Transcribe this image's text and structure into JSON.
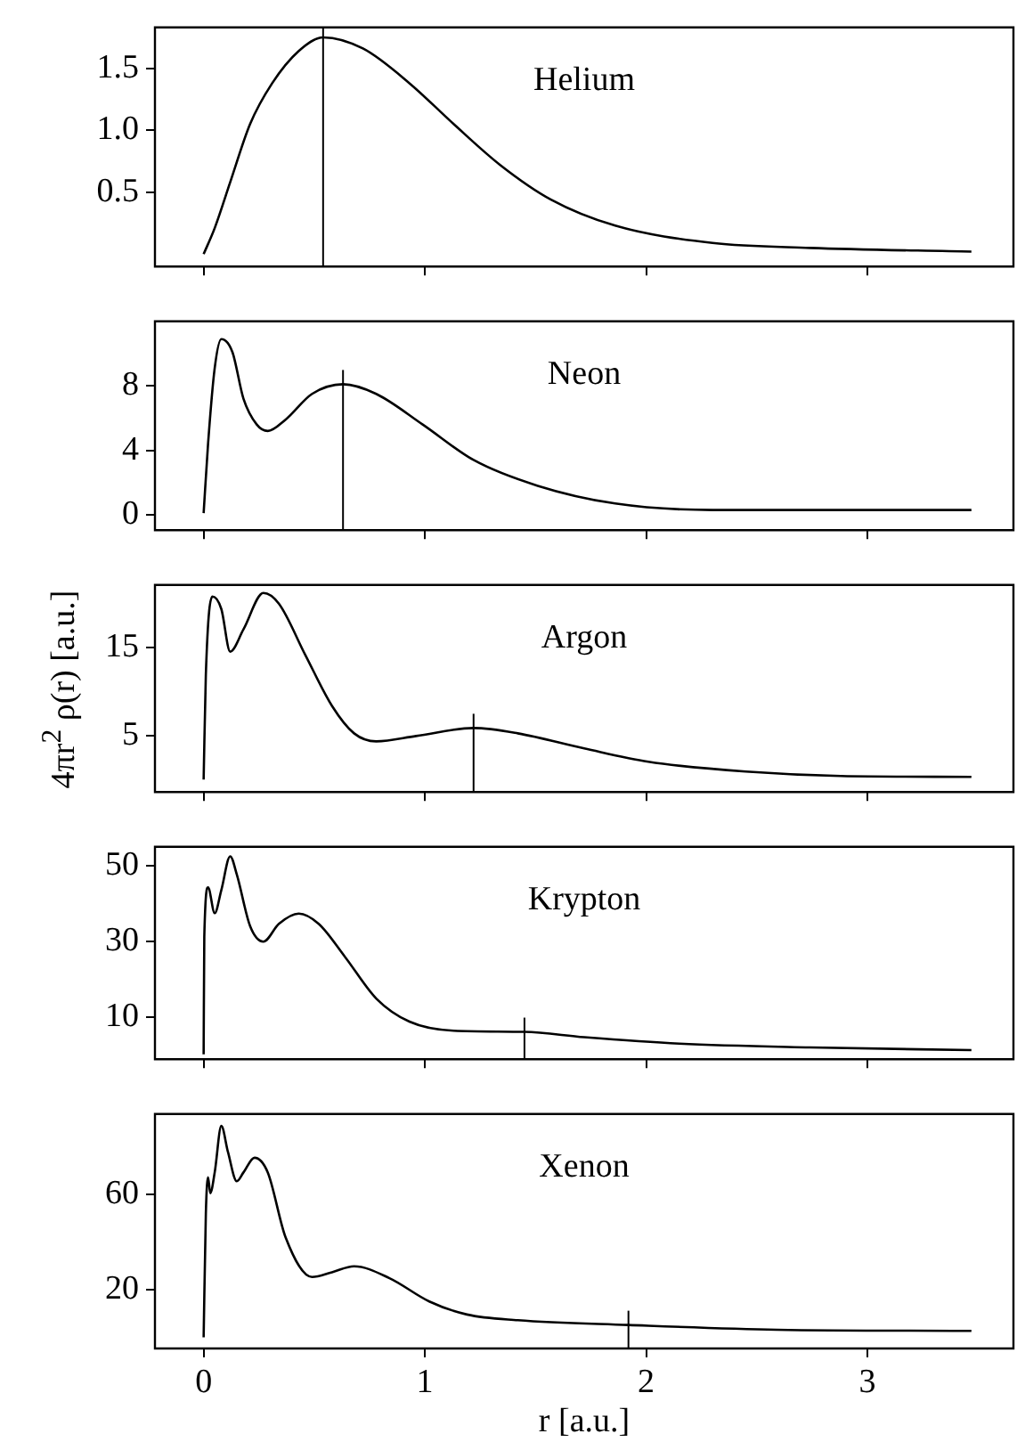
{
  "chart_data": [
    {
      "type": "line",
      "x": [
        0,
        0.05,
        0.12,
        0.21,
        0.31,
        0.43,
        0.54,
        0.72,
        0.93,
        1.13,
        1.34,
        1.57,
        1.86,
        2.3,
        2.74,
        3.47
      ],
      "series": [
        {
          "name": "Helium",
          "color": "#000000",
          "values": [
            0,
            0.21,
            0.58,
            1.05,
            1.38,
            1.64,
            1.75,
            1.66,
            1.38,
            1.05,
            0.72,
            0.44,
            0.23,
            0.09,
            0.05,
            0.02
          ]
        }
      ],
      "xlim": [
        -0.22,
        3.66
      ],
      "xticks": [
        0,
        1,
        2,
        3
      ],
      "ylim": [
        -0.1,
        1.83
      ],
      "yticks": [
        0.5,
        {
          "value": 1,
          "label": "1.0"
        },
        1.5
      ],
      "tick_labels": "y",
      "ref_lines": [
        {
          "axis": "x",
          "value": 0.54
        }
      ]
    },
    {
      "type": "line",
      "x": [
        0,
        0.02,
        0.05,
        0.08,
        0.13,
        0.18,
        0.24,
        0.29,
        0.37,
        0.49,
        0.63,
        0.78,
        0.99,
        1.22,
        1.51,
        1.86,
        2.3,
        2.88,
        3.47
      ],
      "series": [
        {
          "name": "Neon",
          "color": "#000000",
          "values": [
            0.1,
            4.4,
            9.1,
            10.9,
            10.1,
            7.2,
            5.6,
            5.2,
            5.9,
            7.5,
            8.1,
            7.5,
            5.6,
            3.4,
            1.8,
            0.7,
            0.3,
            0.3,
            0.3
          ]
        }
      ],
      "xlim": [
        -0.22,
        3.66
      ],
      "xticks": [
        0,
        1,
        2,
        3
      ],
      "ylim": [
        -0.95,
        12
      ],
      "yticks": [
        0,
        4,
        8
      ],
      "tick_labels": "y",
      "ref_lines": [
        {
          "axis": "x",
          "value": 0.63
        }
      ]
    },
    {
      "type": "line",
      "x": [
        0,
        0.01,
        0.04,
        0.08,
        0.12,
        0.18,
        0.27,
        0.34,
        0.46,
        0.58,
        0.68,
        0.78,
        0.96,
        1.22,
        1.42,
        1.72,
        2.01,
        2.45,
        2.88,
        3.47
      ],
      "series": [
        {
          "name": "Argon",
          "color": "#000000",
          "values": [
            0.1,
            11.9,
            20.7,
            19.3,
            14.5,
            17,
            21.1,
            19.9,
            14.1,
            8.4,
            5.3,
            4.4,
            5,
            5.9,
            5.3,
            3.6,
            2.1,
            1,
            0.5,
            0.4
          ]
        }
      ],
      "xlim": [
        -0.22,
        3.66
      ],
      "xticks": [
        0,
        1,
        2,
        3
      ],
      "ylim": [
        -1.3,
        22
      ],
      "yticks": [
        5,
        15
      ],
      "ylabel": "4πr$^{2}$ ρ(r) [a.u.]",
      "tick_labels": "y",
      "ref_lines": [
        {
          "axis": "x",
          "value": 1.22
        }
      ]
    },
    {
      "type": "line",
      "x": [
        0,
        0.003,
        0.02,
        0.05,
        0.08,
        0.12,
        0.15,
        0.21,
        0.27,
        0.34,
        0.43,
        0.52,
        0.64,
        0.78,
        0.93,
        1.13,
        1.45,
        1.72,
        2.15,
        2.74,
        3.47
      ],
      "series": [
        {
          "name": "Krypton",
          "color": "#000000",
          "values": [
            0.3,
            31.3,
            44.3,
            37.5,
            43.6,
            52.5,
            47.7,
            34.1,
            30,
            34.7,
            37.4,
            34.7,
            25.9,
            15,
            8.9,
            6.5,
            6.2,
            4.8,
            3.1,
            2.1,
            1.4
          ]
        }
      ],
      "xlim": [
        -0.22,
        3.66
      ],
      "xticks": [
        0,
        1,
        2,
        3
      ],
      "ylim": [
        -1,
        55
      ],
      "yticks": [
        10,
        30,
        50
      ],
      "tick_labels": "y",
      "ref_lines": [
        {
          "axis": "x",
          "value": 1.45
        }
      ]
    },
    {
      "type": "line",
      "x": [
        0,
        0.01,
        0.02,
        0.03,
        0.05,
        0.08,
        0.11,
        0.15,
        0.18,
        0.23,
        0.29,
        0.37,
        0.49,
        0.58,
        0.68,
        0.84,
        1.02,
        1.19,
        1.42,
        1.92,
        2.59,
        3.47
      ],
      "series": [
        {
          "name": "Xenon",
          "color": "#000000",
          "values": [
            0,
            52,
            67.4,
            60.7,
            69.4,
            89,
            78,
            65.7,
            69.4,
            75.6,
            69.4,
            42.2,
            25.4,
            27.4,
            29.9,
            24.9,
            15.1,
            9.6,
            7.2,
            5.2,
            3.2,
            2.7
          ]
        }
      ],
      "xlim": [
        -0.22,
        3.66
      ],
      "xticks": [
        0,
        1,
        2,
        3
      ],
      "ylim": [
        -4.7,
        94
      ],
      "yticks": [
        20,
        60
      ],
      "xlabel": "r [a.u.]",
      "ref_lines": [
        {
          "axis": "x",
          "value": 1.92
        }
      ]
    }
  ]
}
